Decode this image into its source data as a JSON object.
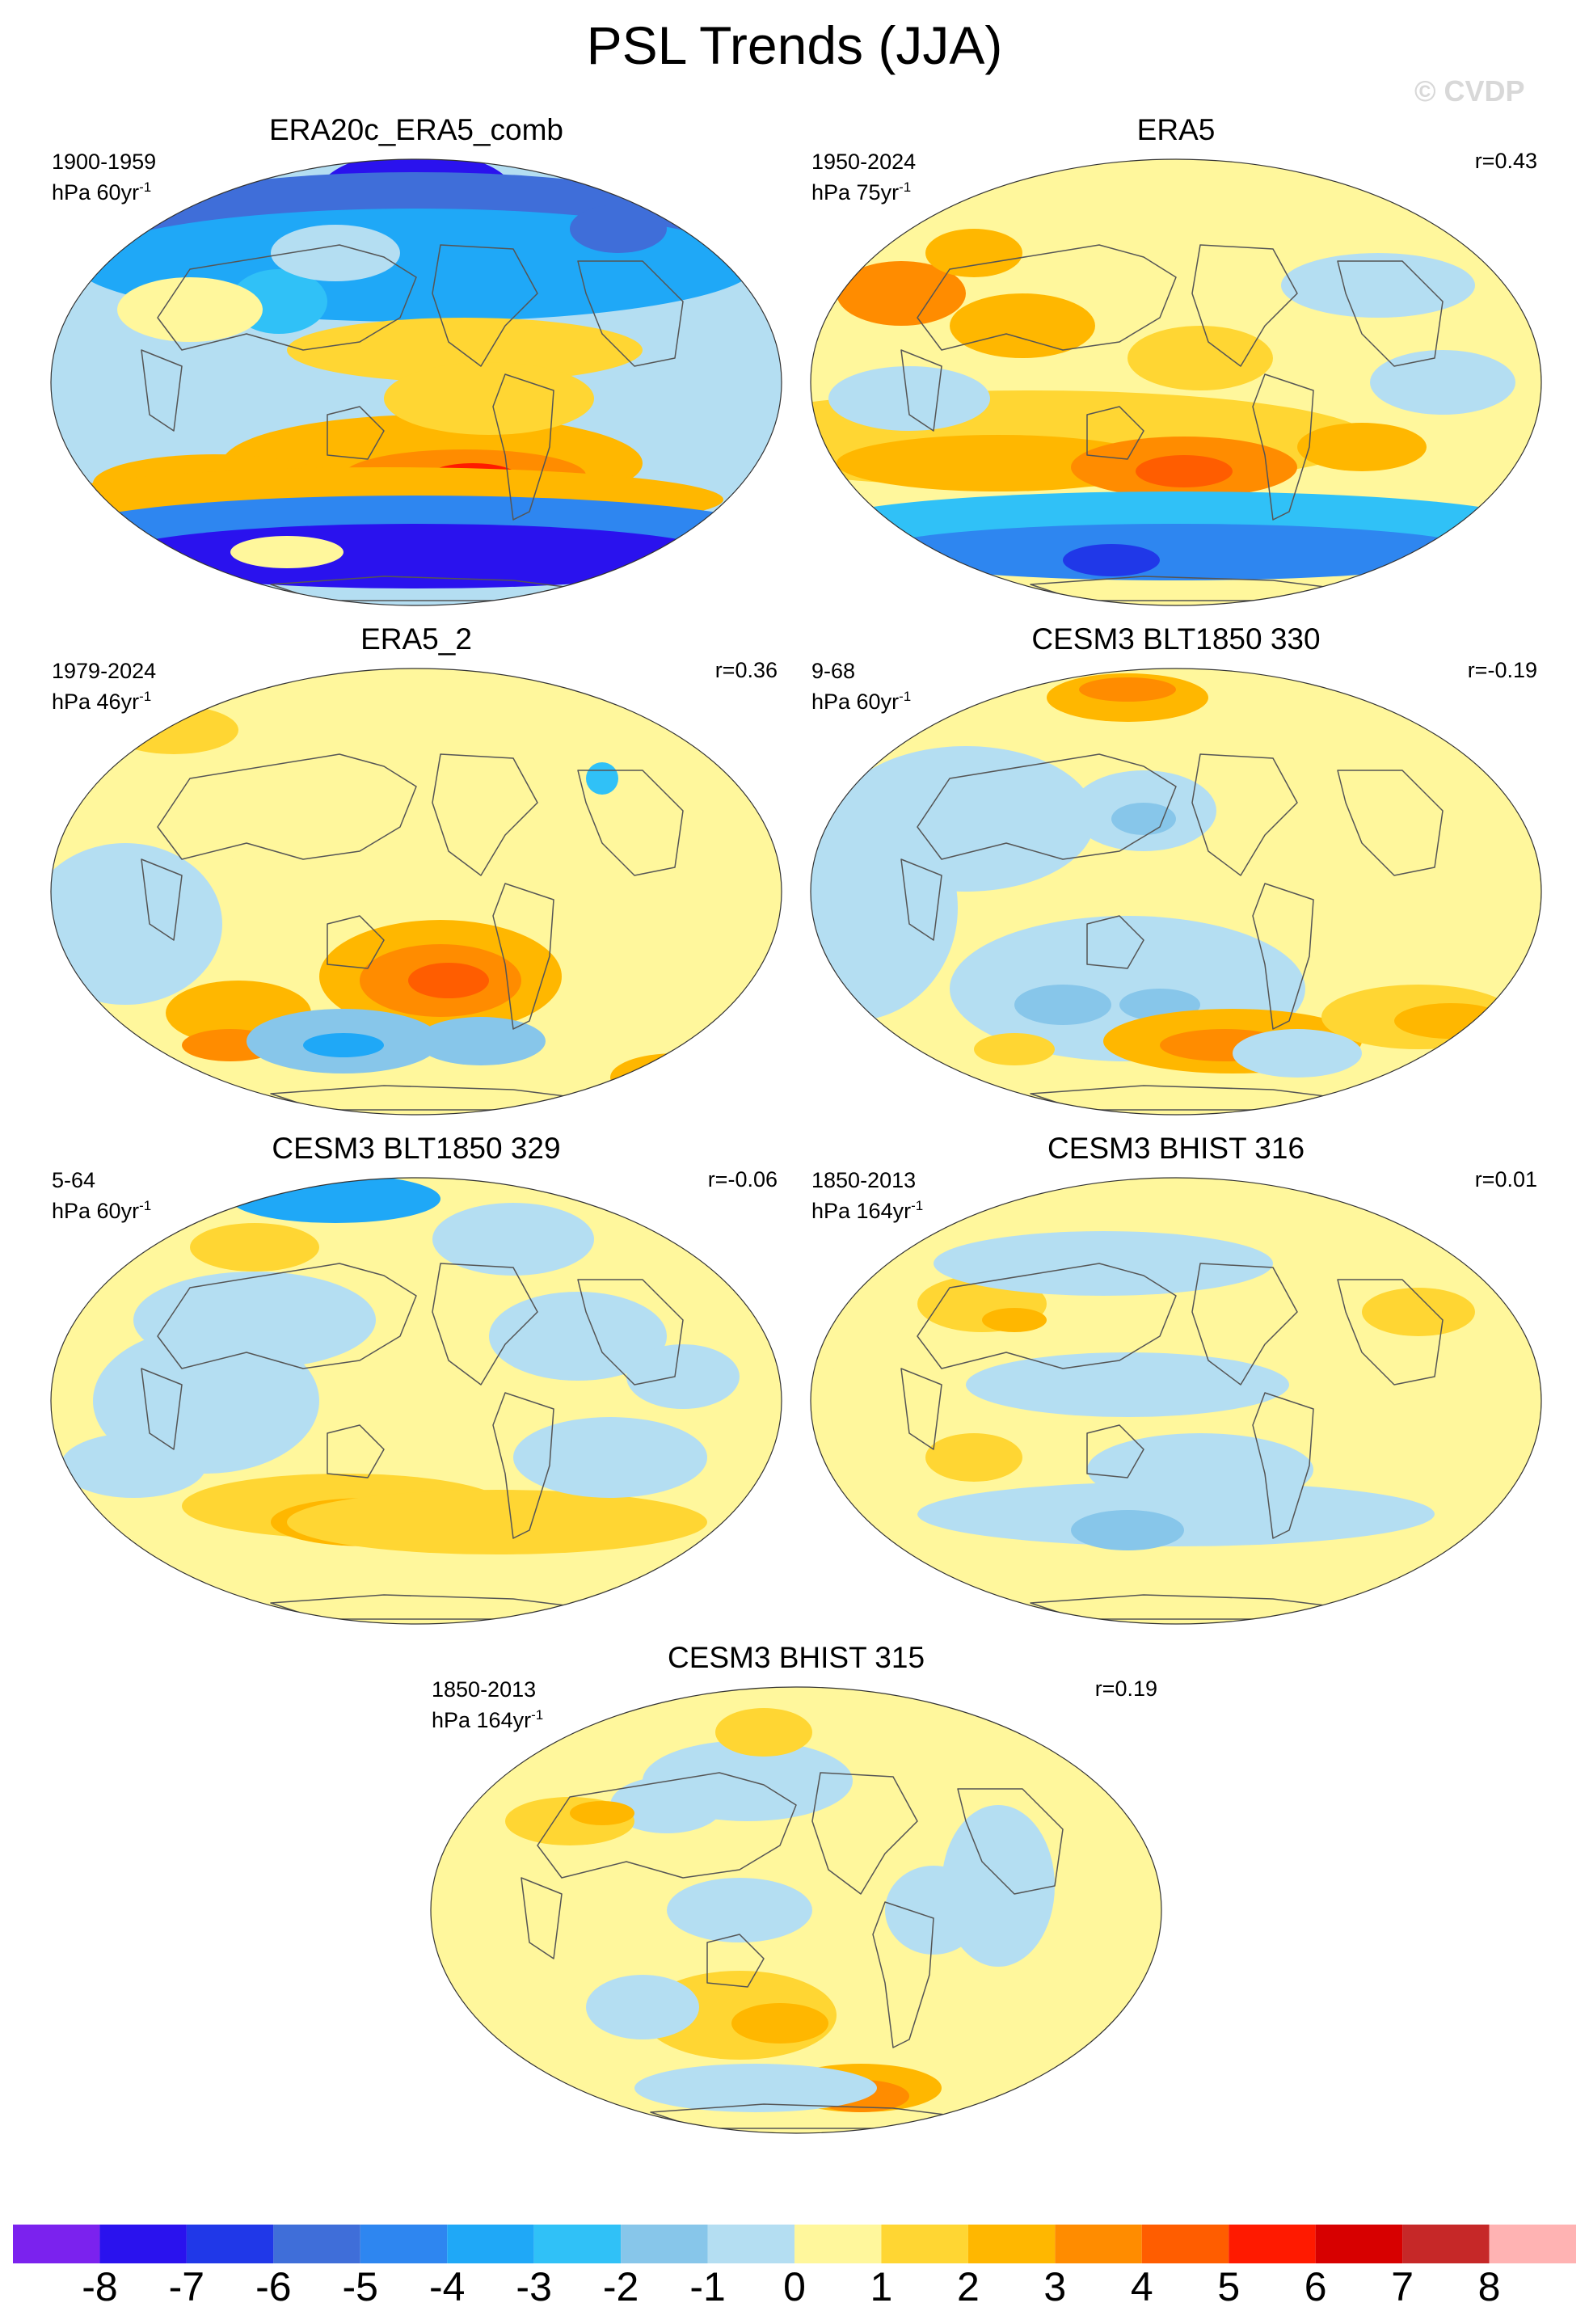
{
  "title": "PSL Trends (JJA)",
  "watermark": "© CVDP",
  "colors": {
    "land_outline": "#555555",
    "levels": [
      "#7b22ee",
      "#2a12ee",
      "#2038e8",
      "#3f6ed9",
      "#2e86f0",
      "#1fa8f7",
      "#30c1f7",
      "#87c6ea",
      "#b4def2",
      "#fff79c",
      "#ffd633",
      "#ffb700",
      "#ff8c00",
      "#ff5d00",
      "#ff1a00",
      "#d70000",
      "#c62828",
      "#ffb3b3"
    ]
  },
  "panels": [
    {
      "title": "ERA20c_ERA5_comb",
      "period": "1900-1959",
      "units_base": "hPa 60yr",
      "units_exp": "-1",
      "corr": ""
    },
    {
      "title": "ERA5",
      "period": "1950-2024",
      "units_base": "hPa 75yr",
      "units_exp": "-1",
      "corr": "r=0.43"
    },
    {
      "title": "ERA5_2",
      "period": "1979-2024",
      "units_base": "hPa 46yr",
      "units_exp": "-1",
      "corr": "r=0.36"
    },
    {
      "title": "CESM3 BLT1850 330",
      "period": "9-68",
      "units_base": "hPa 60yr",
      "units_exp": "-1",
      "corr": "r=-0.19"
    },
    {
      "title": "CESM3 BLT1850 329",
      "period": "5-64",
      "units_base": "hPa 60yr",
      "units_exp": "-1",
      "corr": "r=-0.06"
    },
    {
      "title": "CESM3 BHIST 316",
      "period": "1850-2013",
      "units_base": "hPa 164yr",
      "units_exp": "-1",
      "corr": "r=0.01"
    },
    {
      "title": "CESM3 BHIST 315",
      "period": "1850-2013",
      "units_base": "hPa 164yr",
      "units_exp": "-1",
      "corr": "r=0.19"
    }
  ],
  "colorbar": {
    "ticks": [
      "-8",
      "-7",
      "-6",
      "-5",
      "-4",
      "-3",
      "-2",
      "-1",
      "0",
      "1",
      "2",
      "3",
      "4",
      "5",
      "6",
      "7",
      "8"
    ]
  }
}
